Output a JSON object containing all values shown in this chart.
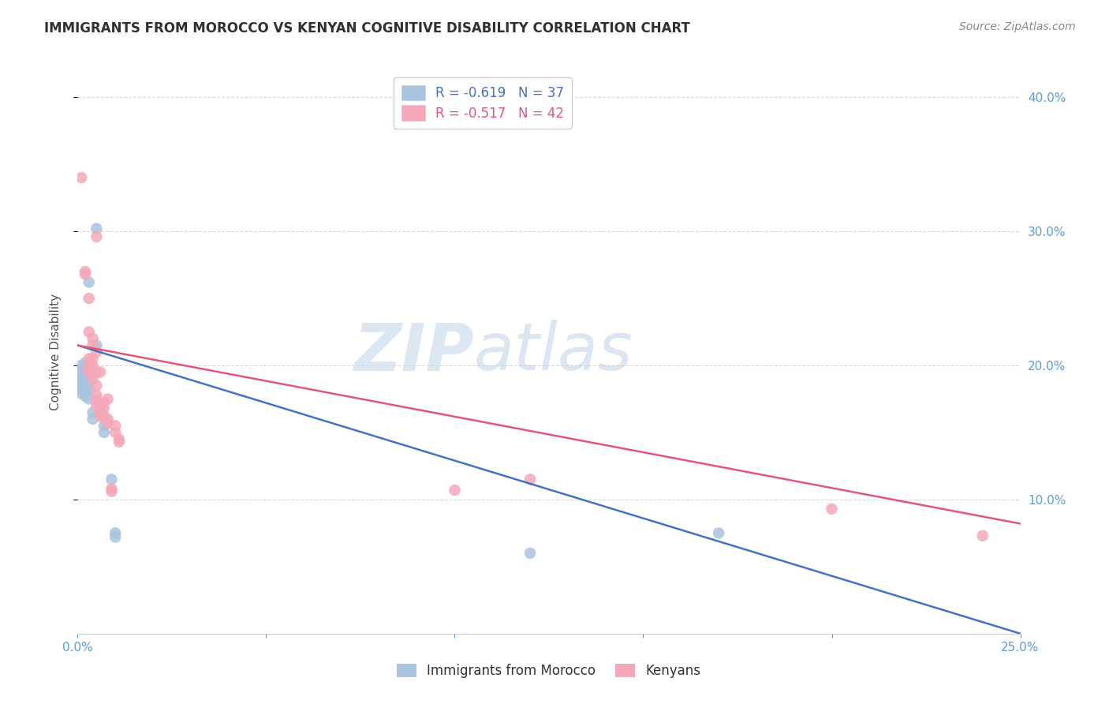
{
  "title": "IMMIGRANTS FROM MOROCCO VS KENYAN COGNITIVE DISABILITY CORRELATION CHART",
  "source": "Source: ZipAtlas.com",
  "ylabel": "Cognitive Disability",
  "xlim": [
    0.0,
    0.25
  ],
  "ylim": [
    0.0,
    0.42
  ],
  "xtick_positions": [
    0.0,
    0.05,
    0.1,
    0.15,
    0.2,
    0.25
  ],
  "xtick_labels": [
    "0.0%",
    "",
    "",
    "",
    "",
    "25.0%"
  ],
  "ytick_positions": [
    0.1,
    0.2,
    0.3,
    0.4
  ],
  "ytick_labels": [
    "10.0%",
    "20.0%",
    "30.0%",
    "40.0%"
  ],
  "legend_labels_top": [
    "R = -0.619   N = 37",
    "R = -0.517   N = 42"
  ],
  "legend_labels_bottom": [
    "Immigrants from Morocco",
    "Kenyans"
  ],
  "blue_color": "#a8c4e0",
  "pink_color": "#f4a8b8",
  "blue_line_color": "#4472c4",
  "pink_line_color": "#e05878",
  "blue_line": {
    "x0": 0.0,
    "y0": 0.215,
    "x1": 0.25,
    "y1": 0.0
  },
  "pink_line": {
    "x0": 0.0,
    "y0": 0.215,
    "x1": 0.25,
    "y1": 0.082
  },
  "watermark_zip": "ZIP",
  "watermark_atlas": "atlas",
  "background_color": "#ffffff",
  "grid_color": "#d8d8d8",
  "title_color": "#303030",
  "source_color": "#888888",
  "axis_label_color": "#555555",
  "tick_color": "#5b9bd5",
  "blue_scatter": [
    [
      0.001,
      0.2
    ],
    [
      0.001,
      0.196
    ],
    [
      0.001,
      0.192
    ],
    [
      0.001,
      0.19
    ],
    [
      0.001,
      0.188
    ],
    [
      0.001,
      0.185
    ],
    [
      0.001,
      0.182
    ],
    [
      0.001,
      0.179
    ],
    [
      0.002,
      0.202
    ],
    [
      0.002,
      0.198
    ],
    [
      0.002,
      0.195
    ],
    [
      0.002,
      0.191
    ],
    [
      0.002,
      0.188
    ],
    [
      0.002,
      0.184
    ],
    [
      0.002,
      0.181
    ],
    [
      0.002,
      0.177
    ],
    [
      0.003,
      0.262
    ],
    [
      0.003,
      0.198
    ],
    [
      0.003,
      0.194
    ],
    [
      0.003,
      0.19
    ],
    [
      0.003,
      0.186
    ],
    [
      0.003,
      0.182
    ],
    [
      0.003,
      0.175
    ],
    [
      0.004,
      0.165
    ],
    [
      0.004,
      0.16
    ],
    [
      0.005,
      0.302
    ],
    [
      0.005,
      0.215
    ],
    [
      0.006,
      0.172
    ],
    [
      0.006,
      0.168
    ],
    [
      0.006,
      0.164
    ],
    [
      0.007,
      0.155
    ],
    [
      0.007,
      0.15
    ],
    [
      0.009,
      0.115
    ],
    [
      0.01,
      0.075
    ],
    [
      0.01,
      0.072
    ],
    [
      0.12,
      0.06
    ],
    [
      0.17,
      0.075
    ]
  ],
  "pink_scatter": [
    [
      0.001,
      0.34
    ],
    [
      0.002,
      0.268
    ],
    [
      0.002,
      0.27
    ],
    [
      0.003,
      0.25
    ],
    [
      0.003,
      0.225
    ],
    [
      0.003,
      0.205
    ],
    [
      0.003,
      0.2
    ],
    [
      0.003,
      0.198
    ],
    [
      0.003,
      0.195
    ],
    [
      0.004,
      0.22
    ],
    [
      0.004,
      0.215
    ],
    [
      0.004,
      0.205
    ],
    [
      0.004,
      0.2
    ],
    [
      0.004,
      0.195
    ],
    [
      0.004,
      0.19
    ],
    [
      0.005,
      0.296
    ],
    [
      0.005,
      0.21
    ],
    [
      0.005,
      0.195
    ],
    [
      0.005,
      0.185
    ],
    [
      0.005,
      0.178
    ],
    [
      0.005,
      0.174
    ],
    [
      0.005,
      0.17
    ],
    [
      0.006,
      0.168
    ],
    [
      0.006,
      0.165
    ],
    [
      0.006,
      0.162
    ],
    [
      0.007,
      0.172
    ],
    [
      0.007,
      0.168
    ],
    [
      0.007,
      0.162
    ],
    [
      0.008,
      0.16
    ],
    [
      0.008,
      0.157
    ],
    [
      0.009,
      0.108
    ],
    [
      0.009,
      0.106
    ],
    [
      0.1,
      0.107
    ],
    [
      0.12,
      0.115
    ],
    [
      0.2,
      0.093
    ],
    [
      0.24,
      0.073
    ],
    [
      0.01,
      0.155
    ],
    [
      0.01,
      0.15
    ],
    [
      0.011,
      0.145
    ],
    [
      0.011,
      0.143
    ],
    [
      0.006,
      0.195
    ],
    [
      0.008,
      0.175
    ]
  ]
}
